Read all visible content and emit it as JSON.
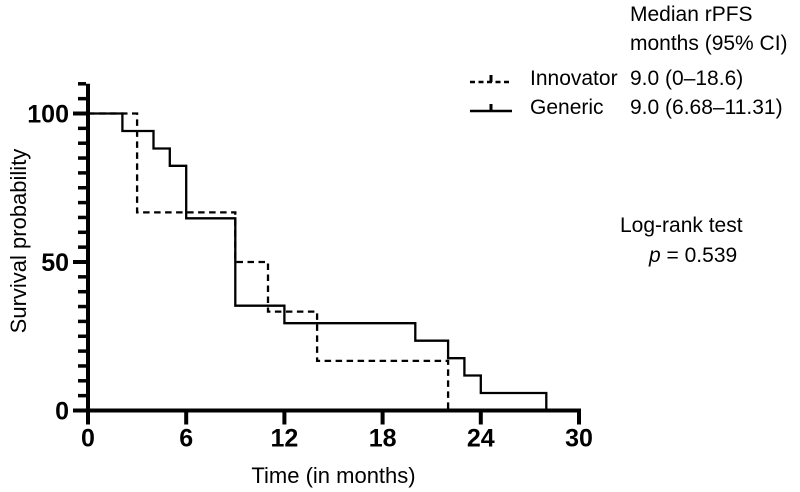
{
  "figure": {
    "legend": {
      "header_line1": "Median rPFS",
      "header_line2": "months (95% CI)",
      "entries": [
        {
          "label": "Innovator",
          "value": "9.0 (0–18.6)",
          "line_style": "dashed"
        },
        {
          "label": "Generic",
          "value": "9.0 (6.68–11.31)",
          "line_style": "solid"
        }
      ]
    },
    "stats": {
      "test_name": "Log-rank test",
      "p_symbol": "p",
      "p_rest": " = 0.539"
    }
  },
  "chart_data": {
    "type": "line",
    "subtype": "kaplan_meier_step",
    "title": "",
    "xlabel": "Time (in months)",
    "ylabel": "Survival probability",
    "xlim": [
      0,
      30
    ],
    "xticks": [
      0,
      6,
      12,
      18,
      24,
      30
    ],
    "ylim": [
      0,
      110
    ],
    "yticks": [
      0,
      50,
      100
    ],
    "ytick_minor_step": 5,
    "grid": false,
    "legend_position": "top-right",
    "series": [
      {
        "name": "Innovator",
        "line_style": "dashed",
        "median_rpfs_months_95ci": "9.0 (0–18.6)",
        "steps_time_then_survival_pct": [
          [
            0,
            100
          ],
          [
            3,
            66.7
          ],
          [
            9,
            50
          ],
          [
            11,
            33.3
          ],
          [
            14,
            16.7
          ],
          [
            22,
            0
          ]
        ]
      },
      {
        "name": "Generic",
        "line_style": "solid",
        "median_rpfs_months_95ci": "9.0 (6.68–11.31)",
        "steps_time_then_survival_pct": [
          [
            0,
            100
          ],
          [
            2.1,
            94.1
          ],
          [
            4,
            88.2
          ],
          [
            5,
            82.4
          ],
          [
            6,
            64.7
          ],
          [
            9,
            35.3
          ],
          [
            12,
            29.4
          ],
          [
            20,
            23.5
          ],
          [
            22,
            17.6
          ],
          [
            23,
            11.8
          ],
          [
            24,
            5.9
          ],
          [
            28,
            0
          ]
        ]
      }
    ],
    "annotations": [
      "Log-rank test",
      "p = 0.539"
    ]
  },
  "colors": {
    "line": "#000000",
    "text": "#000000",
    "background": "#ffffff"
  }
}
